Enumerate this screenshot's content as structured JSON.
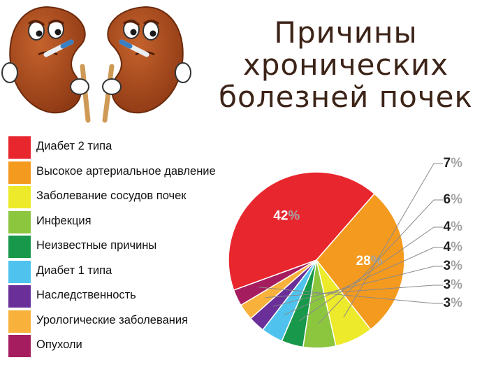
{
  "title": {
    "line1": "Причины",
    "line2": "хронических",
    "line3": "болезней почек"
  },
  "chart_data": {
    "type": "pie",
    "title": "Причины хронических болезней почек",
    "slices": [
      {
        "label": "Диабет 2 типа",
        "value": 42,
        "color": "#e8262e"
      },
      {
        "label": "Высокое артериальное давление",
        "value": 28,
        "color": "#f49a1f"
      },
      {
        "label": "Заболевание сосудов почек",
        "value": 7,
        "color": "#ecea2a"
      },
      {
        "label": "Инфекция",
        "value": 6,
        "color": "#8cc63f"
      },
      {
        "label": "Неизвестные причины",
        "value": 4,
        "color": "#17984a"
      },
      {
        "label": "Диабет 1 типа",
        "value": 4,
        "color": "#4fc3ee"
      },
      {
        "label": "Наследственность",
        "value": 3,
        "color": "#6a2f98"
      },
      {
        "label": "Урологические заболевания",
        "value": 3,
        "color": "#f8b13a"
      },
      {
        "label": "Опухоли",
        "value": 3,
        "color": "#a51d5e"
      }
    ],
    "data_labels": [
      "42%",
      "28%",
      "7%",
      "6%",
      "4%",
      "4%",
      "3%",
      "3%",
      "3%"
    ],
    "legend_position": "left"
  },
  "illustration": {
    "icon": "sick-kidney-characters-icon"
  }
}
